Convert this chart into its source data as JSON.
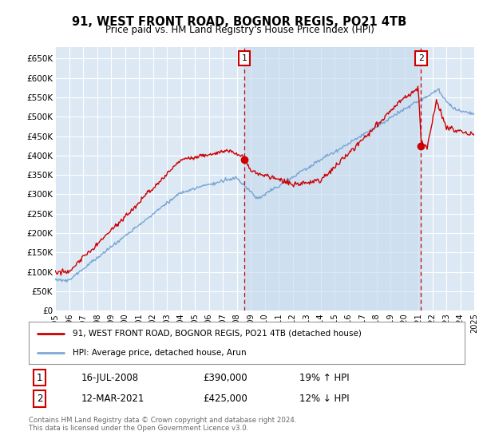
{
  "title": "91, WEST FRONT ROAD, BOGNOR REGIS, PO21 4TB",
  "subtitle": "Price paid vs. HM Land Registry's House Price Index (HPI)",
  "background_color": "#ffffff",
  "plot_bg_color": "#dce9f5",
  "shaded_bg_color": "#c5d9ee",
  "grid_color": "#ffffff",
  "red_color": "#cc0000",
  "blue_color": "#6699cc",
  "ylim": [
    0,
    680000
  ],
  "yticks": [
    0,
    50000,
    100000,
    150000,
    200000,
    250000,
    300000,
    350000,
    400000,
    450000,
    500000,
    550000,
    600000,
    650000
  ],
  "annotation1_date": "16-JUL-2008",
  "annotation1_price": "£390,000",
  "annotation1_hpi": "19% ↑ HPI",
  "annotation2_date": "12-MAR-2021",
  "annotation2_price": "£425,000",
  "annotation2_hpi": "12% ↓ HPI",
  "legend_line1": "91, WEST FRONT ROAD, BOGNOR REGIS, PO21 4TB (detached house)",
  "legend_line2": "HPI: Average price, detached house, Arun",
  "footer": "Contains HM Land Registry data © Crown copyright and database right 2024.\nThis data is licensed under the Open Government Licence v3.0.",
  "sale1_year": 2008.54,
  "sale1_price": 390000,
  "sale2_year": 2021.19,
  "sale2_price": 425000,
  "xstart": 1995,
  "xend": 2025
}
